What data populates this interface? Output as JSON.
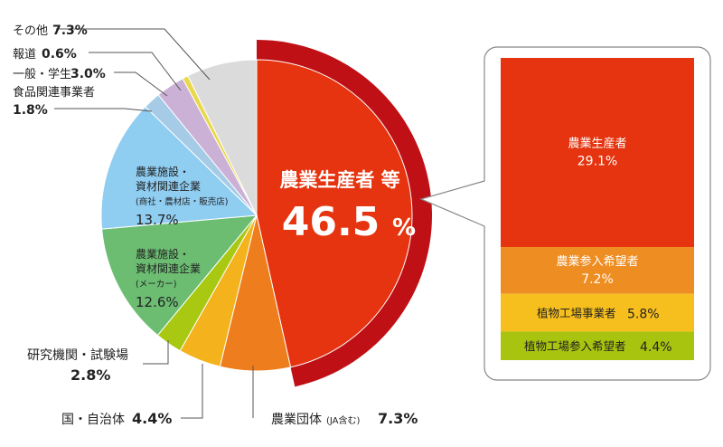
{
  "chart_data": [
    {
      "type": "pie",
      "categories": [
        "農業生産者 等",
        "農業団体",
        "国・自治体",
        "研究機関・試験場",
        "農業施設・資材関連企業 (メーカー)",
        "農業施設・資材関連企業 (商社・農材店・販売店)",
        "食品関連事業者",
        "一般・学生",
        "報道",
        "その他"
      ],
      "values": [
        46.5,
        7.3,
        4.4,
        2.8,
        12.6,
        13.7,
        1.8,
        3.0,
        0.6,
        7.3
      ],
      "unit": "%",
      "colors": [
        "#e5340f",
        "#ee7d1d",
        "#f4b21c",
        "#a8c812",
        "#6cbd72",
        "#8fcdf1",
        "#a5cbe6",
        "#cbb1d6",
        "#e9d84a",
        "#dcdbdb"
      ],
      "outer_band_color": "#bf1016",
      "labels": [
        {
          "lines": [
            "農業生産者 等"
          ],
          "value": "46.5",
          "pct": "%"
        },
        {
          "lines": [
            "農業団体",
            "(JA含む)"
          ],
          "value": "7.3%"
        },
        {
          "lines": [
            "国・自治体"
          ],
          "value": "4.4%"
        },
        {
          "lines": [
            "研究機関・試験場"
          ],
          "value": "2.8%"
        },
        {
          "lines": [
            "農業施設・",
            "資材関連企業",
            "(メーカー)"
          ],
          "value": "12.6%"
        },
        {
          "lines": [
            "農業施設・",
            "資材関連企業",
            "(商社・農材店・販売店)"
          ],
          "value": "13.7%"
        },
        {
          "lines": [
            "食品関連事業者"
          ],
          "value": "1.8%"
        },
        {
          "lines": [
            "一般・学生"
          ],
          "value": "3.0%"
        },
        {
          "lines": [
            "報道"
          ],
          "value": "0.6%"
        },
        {
          "lines": [
            "その他"
          ],
          "value": "7.3%"
        }
      ]
    },
    {
      "type": "bar",
      "stacked": true,
      "categories": [
        "農業生産者",
        "農業参入希望者",
        "植物工場事業者",
        "植物工場参入希望者"
      ],
      "values": [
        29.1,
        7.2,
        5.8,
        4.4
      ],
      "unit": "%",
      "colors": [
        "#e5340f",
        "#ee8d21",
        "#f6bf1d",
        "#a9c40f"
      ],
      "value_labels": [
        "29.1%",
        "7.2%",
        "5.8%",
        "4.4%"
      ],
      "callout_border_color": "#888888"
    }
  ]
}
